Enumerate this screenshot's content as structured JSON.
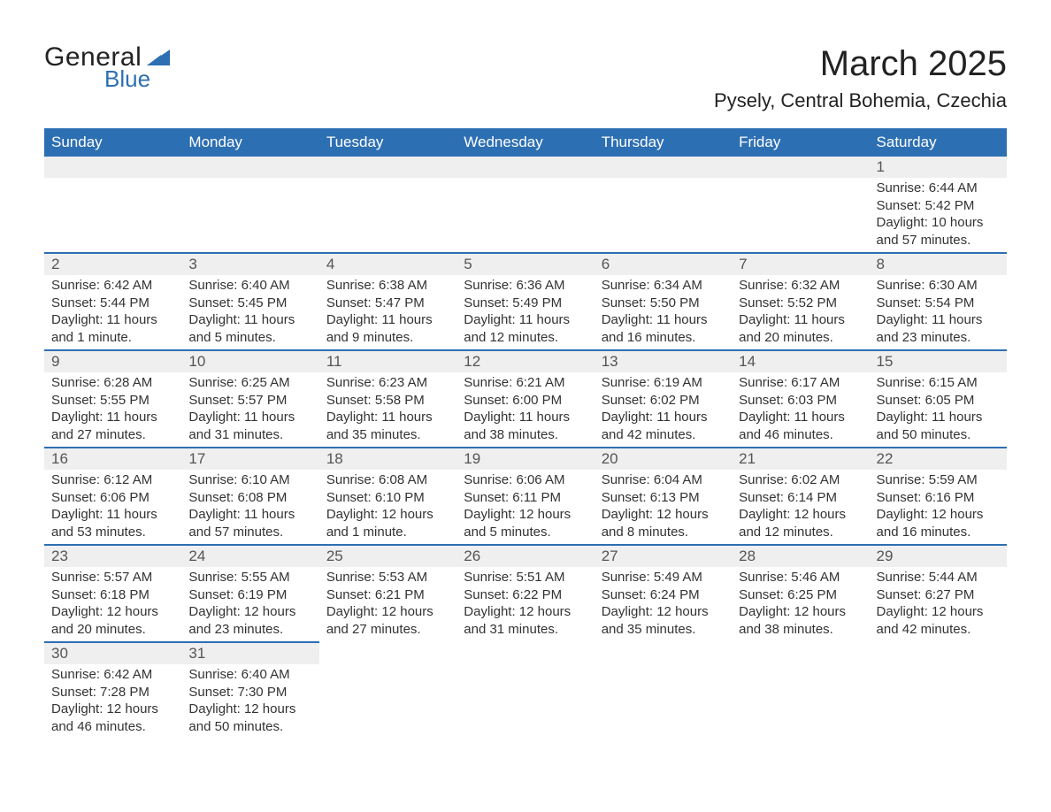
{
  "logo": {
    "word1": "General",
    "word2": "Blue",
    "text_color": "#222222",
    "accent_color": "#2d6fb3"
  },
  "header": {
    "month_title": "March 2025",
    "location": "Pysely, Central Bohemia, Czechia"
  },
  "calendar": {
    "type": "table",
    "header_bg": "#2d6fb3",
    "header_fg": "#ffffff",
    "row_separator_color": "#2d6fb3",
    "daynum_bg": "#efefef",
    "body_fg": "#333333",
    "weekdays": [
      "Sunday",
      "Monday",
      "Tuesday",
      "Wednesday",
      "Thursday",
      "Friday",
      "Saturday"
    ],
    "weeks": [
      [
        {
          "empty": true
        },
        {
          "empty": true
        },
        {
          "empty": true
        },
        {
          "empty": true
        },
        {
          "empty": true
        },
        {
          "empty": true
        },
        {
          "day": "1",
          "sunrise": "Sunrise: 6:44 AM",
          "sunset": "Sunset: 5:42 PM",
          "daylight": "Daylight: 10 hours and 57 minutes."
        }
      ],
      [
        {
          "day": "2",
          "sunrise": "Sunrise: 6:42 AM",
          "sunset": "Sunset: 5:44 PM",
          "daylight": "Daylight: 11 hours and 1 minute."
        },
        {
          "day": "3",
          "sunrise": "Sunrise: 6:40 AM",
          "sunset": "Sunset: 5:45 PM",
          "daylight": "Daylight: 11 hours and 5 minutes."
        },
        {
          "day": "4",
          "sunrise": "Sunrise: 6:38 AM",
          "sunset": "Sunset: 5:47 PM",
          "daylight": "Daylight: 11 hours and 9 minutes."
        },
        {
          "day": "5",
          "sunrise": "Sunrise: 6:36 AM",
          "sunset": "Sunset: 5:49 PM",
          "daylight": "Daylight: 11 hours and 12 minutes."
        },
        {
          "day": "6",
          "sunrise": "Sunrise: 6:34 AM",
          "sunset": "Sunset: 5:50 PM",
          "daylight": "Daylight: 11 hours and 16 minutes."
        },
        {
          "day": "7",
          "sunrise": "Sunrise: 6:32 AM",
          "sunset": "Sunset: 5:52 PM",
          "daylight": "Daylight: 11 hours and 20 minutes."
        },
        {
          "day": "8",
          "sunrise": "Sunrise: 6:30 AM",
          "sunset": "Sunset: 5:54 PM",
          "daylight": "Daylight: 11 hours and 23 minutes."
        }
      ],
      [
        {
          "day": "9",
          "sunrise": "Sunrise: 6:28 AM",
          "sunset": "Sunset: 5:55 PM",
          "daylight": "Daylight: 11 hours and 27 minutes."
        },
        {
          "day": "10",
          "sunrise": "Sunrise: 6:25 AM",
          "sunset": "Sunset: 5:57 PM",
          "daylight": "Daylight: 11 hours and 31 minutes."
        },
        {
          "day": "11",
          "sunrise": "Sunrise: 6:23 AM",
          "sunset": "Sunset: 5:58 PM",
          "daylight": "Daylight: 11 hours and 35 minutes."
        },
        {
          "day": "12",
          "sunrise": "Sunrise: 6:21 AM",
          "sunset": "Sunset: 6:00 PM",
          "daylight": "Daylight: 11 hours and 38 minutes."
        },
        {
          "day": "13",
          "sunrise": "Sunrise: 6:19 AM",
          "sunset": "Sunset: 6:02 PM",
          "daylight": "Daylight: 11 hours and 42 minutes."
        },
        {
          "day": "14",
          "sunrise": "Sunrise: 6:17 AM",
          "sunset": "Sunset: 6:03 PM",
          "daylight": "Daylight: 11 hours and 46 minutes."
        },
        {
          "day": "15",
          "sunrise": "Sunrise: 6:15 AM",
          "sunset": "Sunset: 6:05 PM",
          "daylight": "Daylight: 11 hours and 50 minutes."
        }
      ],
      [
        {
          "day": "16",
          "sunrise": "Sunrise: 6:12 AM",
          "sunset": "Sunset: 6:06 PM",
          "daylight": "Daylight: 11 hours and 53 minutes."
        },
        {
          "day": "17",
          "sunrise": "Sunrise: 6:10 AM",
          "sunset": "Sunset: 6:08 PM",
          "daylight": "Daylight: 11 hours and 57 minutes."
        },
        {
          "day": "18",
          "sunrise": "Sunrise: 6:08 AM",
          "sunset": "Sunset: 6:10 PM",
          "daylight": "Daylight: 12 hours and 1 minute."
        },
        {
          "day": "19",
          "sunrise": "Sunrise: 6:06 AM",
          "sunset": "Sunset: 6:11 PM",
          "daylight": "Daylight: 12 hours and 5 minutes."
        },
        {
          "day": "20",
          "sunrise": "Sunrise: 6:04 AM",
          "sunset": "Sunset: 6:13 PM",
          "daylight": "Daylight: 12 hours and 8 minutes."
        },
        {
          "day": "21",
          "sunrise": "Sunrise: 6:02 AM",
          "sunset": "Sunset: 6:14 PM",
          "daylight": "Daylight: 12 hours and 12 minutes."
        },
        {
          "day": "22",
          "sunrise": "Sunrise: 5:59 AM",
          "sunset": "Sunset: 6:16 PM",
          "daylight": "Daylight: 12 hours and 16 minutes."
        }
      ],
      [
        {
          "day": "23",
          "sunrise": "Sunrise: 5:57 AM",
          "sunset": "Sunset: 6:18 PM",
          "daylight": "Daylight: 12 hours and 20 minutes."
        },
        {
          "day": "24",
          "sunrise": "Sunrise: 5:55 AM",
          "sunset": "Sunset: 6:19 PM",
          "daylight": "Daylight: 12 hours and 23 minutes."
        },
        {
          "day": "25",
          "sunrise": "Sunrise: 5:53 AM",
          "sunset": "Sunset: 6:21 PM",
          "daylight": "Daylight: 12 hours and 27 minutes."
        },
        {
          "day": "26",
          "sunrise": "Sunrise: 5:51 AM",
          "sunset": "Sunset: 6:22 PM",
          "daylight": "Daylight: 12 hours and 31 minutes."
        },
        {
          "day": "27",
          "sunrise": "Sunrise: 5:49 AM",
          "sunset": "Sunset: 6:24 PM",
          "daylight": "Daylight: 12 hours and 35 minutes."
        },
        {
          "day": "28",
          "sunrise": "Sunrise: 5:46 AM",
          "sunset": "Sunset: 6:25 PM",
          "daylight": "Daylight: 12 hours and 38 minutes."
        },
        {
          "day": "29",
          "sunrise": "Sunrise: 5:44 AM",
          "sunset": "Sunset: 6:27 PM",
          "daylight": "Daylight: 12 hours and 42 minutes."
        }
      ],
      [
        {
          "day": "30",
          "sunrise": "Sunrise: 6:42 AM",
          "sunset": "Sunset: 7:28 PM",
          "daylight": "Daylight: 12 hours and 46 minutes."
        },
        {
          "day": "31",
          "sunrise": "Sunrise: 6:40 AM",
          "sunset": "Sunset: 7:30 PM",
          "daylight": "Daylight: 12 hours and 50 minutes."
        },
        {
          "empty": true
        },
        {
          "empty": true
        },
        {
          "empty": true
        },
        {
          "empty": true
        },
        {
          "empty": true
        }
      ]
    ]
  }
}
